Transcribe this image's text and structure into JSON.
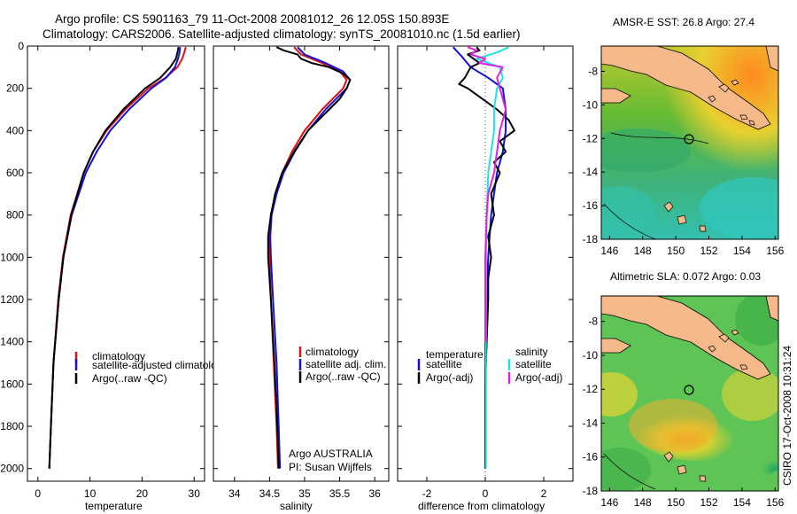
{
  "figure": {
    "title_line1": "Argo profile: CS 5901163_79 11-Oct-2008 20081012_26 12.05S 150.893E",
    "title_line2": "Climatology: CARS2006. Satellite-adjusted climatology: synTS_20081010.nc (1.5d earlier)",
    "footer": "CSIRO 17-Oct-2008 10:31:24"
  },
  "colors": {
    "climatology": "#e01010",
    "satellite": "#1010e0",
    "argo": "#000000",
    "sat_diff": "#20e0e8",
    "argo_diff": "#e020e0",
    "land": "#f5b98a",
    "sst_ocean": "#44bb44",
    "sla_ocean": "#66cc55"
  },
  "chart_data": [
    {
      "type": "line",
      "xlabel": "temperature",
      "xlim": [
        -2,
        32
      ],
      "ylim": [
        2060,
        0
      ],
      "xticks": [
        "0",
        "10",
        "20",
        "30"
      ],
      "yticks": [
        "0",
        "200",
        "400",
        "600",
        "800",
        "1000",
        "1200",
        "1400",
        "1600",
        "1800",
        "2000"
      ],
      "legend": [
        "climatology",
        "satellite-adjusted climatology",
        "Argo(..raw -QC)"
      ],
      "series": [
        {
          "name": "climatology",
          "depth": [
            5,
            30,
            60,
            100,
            150,
            200,
            300,
            400,
            500,
            600,
            800,
            1000,
            1200,
            1500,
            1800,
            2000
          ],
          "values": [
            28.4,
            28.1,
            27.7,
            26.8,
            24.5,
            21.2,
            16.8,
            13.2,
            10.6,
            8.8,
            6.3,
            4.8,
            3.9,
            3.0,
            2.5,
            2.2
          ]
        },
        {
          "name": "satellite-adjusted climatology",
          "depth": [
            5,
            30,
            60,
            100,
            150,
            200,
            300,
            400,
            500,
            600,
            800,
            1000,
            1200,
            1500,
            1800,
            2000
          ],
          "values": [
            27.3,
            27.2,
            26.9,
            26.3,
            24.6,
            21.8,
            17.5,
            13.9,
            11.3,
            9.2,
            6.5,
            4.9,
            4.0,
            3.0,
            2.5,
            2.2
          ]
        },
        {
          "name": "Argo(..raw -QC)",
          "depth": [
            5,
            30,
            60,
            100,
            150,
            200,
            300,
            400,
            500,
            600,
            800,
            1000,
            1200,
            1500,
            1800,
            2000
          ],
          "values": [
            27.0,
            26.8,
            26.5,
            25.4,
            23.5,
            20.6,
            16.4,
            13.0,
            10.6,
            8.8,
            6.4,
            4.9,
            4.0,
            3.0,
            2.5,
            2.2
          ]
        }
      ]
    },
    {
      "type": "line",
      "xlabel": "salinity",
      "xlim": [
        33.7,
        36.2
      ],
      "ylim": [
        2060,
        0
      ],
      "xticks": [
        "34",
        "34.5",
        "35",
        "35.5",
        "36"
      ],
      "legend": [
        "climatology",
        "satellite adj. clim.",
        "Argo(..raw -QC)"
      ],
      "annotations": [
        "Argo AUSTRALIA",
        "PI: Susan Wijffels"
      ],
      "series": [
        {
          "name": "climatology",
          "depth": [
            5,
            40,
            80,
            120,
            160,
            200,
            250,
            300,
            400,
            500,
            600,
            700,
            800,
            900,
            1000,
            1200,
            1500,
            1800,
            2000
          ],
          "values": [
            34.85,
            34.95,
            35.25,
            35.5,
            35.6,
            35.55,
            35.4,
            35.25,
            35.0,
            34.82,
            34.68,
            34.58,
            34.52,
            34.5,
            34.5,
            34.52,
            34.56,
            34.6,
            34.62
          ]
        },
        {
          "name": "satellite adj. clim.",
          "depth": [
            5,
            40,
            80,
            120,
            160,
            200,
            250,
            300,
            400,
            500,
            600,
            700,
            800,
            900,
            1000,
            1200,
            1500,
            1800,
            2000
          ],
          "values": [
            34.9,
            35.0,
            35.3,
            35.55,
            35.65,
            35.6,
            35.45,
            35.3,
            35.05,
            34.86,
            34.7,
            34.6,
            34.53,
            34.51,
            34.52,
            34.55,
            34.6,
            34.63,
            34.65
          ]
        },
        {
          "name": "Argo(..raw -QC)",
          "depth": [
            5,
            20,
            40,
            60,
            80,
            100,
            130,
            160,
            200,
            250,
            300,
            400,
            500,
            600,
            700,
            800,
            900,
            1000,
            1200,
            1500,
            1800,
            2000
          ],
          "values": [
            34.6,
            34.7,
            34.9,
            34.95,
            35.1,
            35.35,
            35.55,
            35.65,
            35.6,
            35.5,
            35.35,
            35.05,
            34.85,
            34.68,
            34.58,
            34.52,
            34.48,
            34.48,
            34.52,
            34.57,
            34.61,
            34.63
          ]
        }
      ]
    },
    {
      "type": "line",
      "xlabel": "difference from climatology",
      "xlim": [
        -3,
        3
      ],
      "ylim": [
        2060,
        0
      ],
      "xticks": [
        "-2",
        "0",
        "2"
      ],
      "legend": [
        "temperature",
        "satellite",
        "Argo(-adj)",
        "salinity",
        "satellite",
        "Argo(-adj)"
      ],
      "series": [
        {
          "name": "temperature satellite",
          "depth": [
            5,
            50,
            100,
            150,
            200,
            300,
            400,
            500,
            600,
            800,
            1000,
            1400,
            2000
          ],
          "values": [
            -1.1,
            -0.8,
            -0.5,
            0.1,
            0.6,
            0.7,
            0.7,
            0.6,
            0.4,
            0.2,
            0.1,
            0.0,
            0.0
          ]
        },
        {
          "name": "temperature Argo(-adj)",
          "depth": [
            5,
            20,
            40,
            60,
            80,
            100,
            150,
            180,
            200,
            250,
            300,
            350,
            400,
            450,
            500,
            550,
            600,
            700,
            800,
            900,
            1000,
            1100,
            1200,
            1400,
            1600,
            1800,
            2000
          ],
          "values": [
            -0.3,
            -0.2,
            -0.6,
            -0.4,
            -0.2,
            -0.5,
            -0.7,
            -0.9,
            -0.6,
            -0.1,
            0.4,
            0.8,
            1.0,
            0.5,
            0.7,
            0.3,
            0.5,
            0.2,
            0.3,
            0.1,
            0.2,
            0.1,
            0.1,
            0.05,
            0.0,
            0.0,
            0.0
          ]
        },
        {
          "name": "salinity satellite",
          "depth": [
            5,
            30,
            60,
            100,
            150,
            200,
            300,
            400,
            500,
            600,
            800,
            1000,
            1200,
            1500,
            1800,
            2000
          ],
          "values": [
            0.8,
            0.4,
            -0.3,
            0.5,
            0.6,
            0.4,
            0.3,
            0.3,
            0.2,
            0.1,
            0.05,
            0.03,
            0.02,
            0.02,
            0.02,
            0.02
          ]
        },
        {
          "name": "salinity Argo(-adj)",
          "depth": [
            5,
            20,
            40,
            60,
            80,
            100,
            150,
            200,
            300,
            400,
            500,
            600,
            700,
            800,
            1000,
            1200,
            1400
          ],
          "values": [
            -0.6,
            -0.3,
            -0.5,
            0.0,
            -0.2,
            0.6,
            0.4,
            0.5,
            0.7,
            0.5,
            0.4,
            0.3,
            0.1,
            0.05,
            0.0,
            0.0,
            0.0
          ]
        }
      ]
    }
  ],
  "maps": [
    {
      "title": "AMSR-E SST: 26.8 Argo: 27.4",
      "xticks": [
        "146",
        "148",
        "150",
        "152",
        "154",
        "156"
      ],
      "yticks": [
        "-8",
        "-10",
        "-12",
        "-14",
        "-16",
        "-18"
      ],
      "marker": {
        "lon": 150.9,
        "lat": -12.05
      }
    },
    {
      "title": "Altimetric SLA: 0.072 Argo: 0.03",
      "xticks": [
        "146",
        "148",
        "150",
        "152",
        "154",
        "156"
      ],
      "yticks": [
        "-8",
        "-10",
        "-12",
        "-14",
        "-16",
        "-18"
      ],
      "marker": {
        "lon": 150.9,
        "lat": -12.05
      }
    }
  ]
}
